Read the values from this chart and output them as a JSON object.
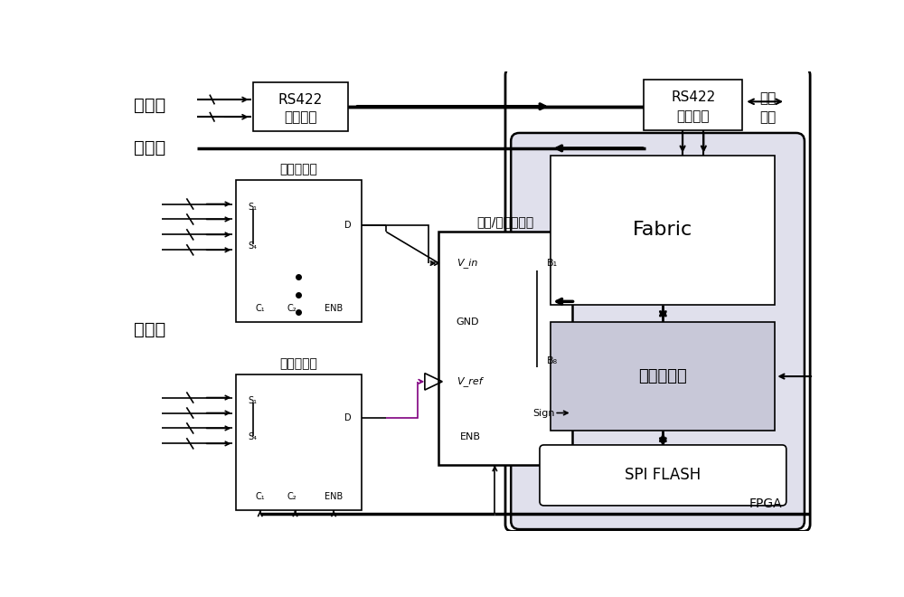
{
  "bg": "#ffffff",
  "lc": "#000000",
  "fpga_bg": "#e0e0ec",
  "proc_bg": "#c8c8d8",
  "figsize": [
    10.0,
    6.6
  ],
  "dpi": 100,
  "texts": {
    "digital": "数字量",
    "switch": "开关量",
    "analog": "模拟量",
    "rs422": "RS422",
    "interface": "接口芯片",
    "mux": "多路复用器",
    "adc_label": "模拟/数字转换器",
    "fabric": "Fabric",
    "processor": "处理器内核",
    "fpga": "FPGA",
    "spi": "SPI FLASH",
    "read": "读数",
    "control": "控制"
  }
}
